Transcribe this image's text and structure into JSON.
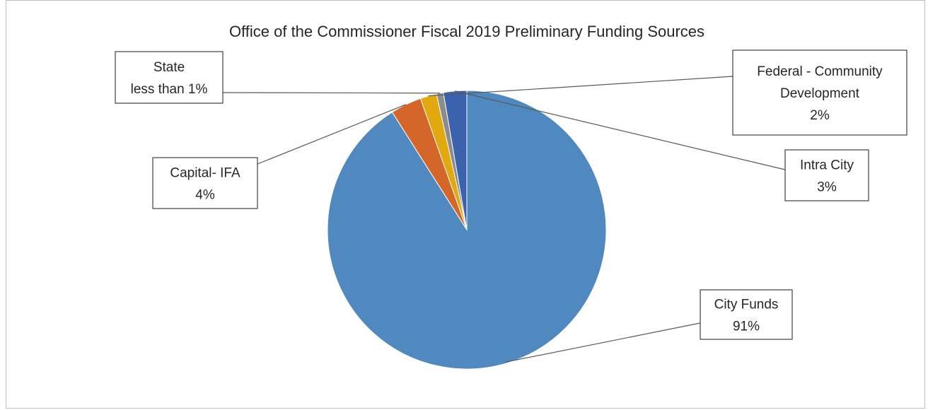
{
  "chart_data": {
    "type": "pie",
    "title": "Office of the Commissioner Fiscal 2019 Preliminary Funding Sources",
    "slices": [
      {
        "name": "City Funds",
        "value": 91,
        "label": [
          "City Funds",
          "91%"
        ],
        "color": "#4f89c0"
      },
      {
        "name": "Capital- IFA",
        "value": 3.6,
        "label": [
          "Capital- IFA",
          "4%"
        ],
        "color": "#d4662a"
      },
      {
        "name": "Federal - Community Development",
        "value": 1.9,
        "label": [
          "Federal - Community",
          "Development",
          "2%"
        ],
        "color": "#e1a90e"
      },
      {
        "name": "State",
        "value": 0.8,
        "label": [
          "State",
          "less than 1%"
        ],
        "color": "#8c8c8c"
      },
      {
        "name": "Intra City",
        "value": 2.7,
        "label": [
          "Intra City",
          "3%"
        ],
        "color": "#3b63ad"
      }
    ],
    "legend": "none"
  }
}
